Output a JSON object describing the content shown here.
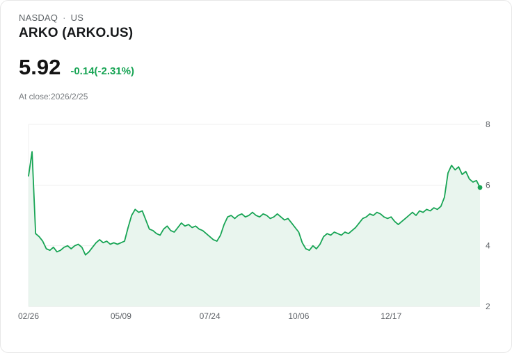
{
  "header": {
    "exchange": "NASDAQ",
    "separator": "·",
    "region": "US",
    "title": "ARKO (ARKO.US)"
  },
  "quote": {
    "price": "5.92",
    "change": "-0.14(-2.31%)",
    "change_color": "#17a454",
    "as_of": "At close:2026/2/25"
  },
  "chart_data": {
    "type": "area",
    "title": "ARKO.US one-year price history",
    "ylabel": "Price",
    "ylim": [
      2,
      8
    ],
    "yticks": [
      2,
      4,
      6,
      8
    ],
    "grid": true,
    "legend": "none",
    "xtick_labels": [
      "02/26",
      "05/09",
      "07/24",
      "10/06",
      "12/17"
    ],
    "xtick_indices": [
      0,
      26,
      51,
      76,
      102
    ],
    "last_value": 5.92,
    "colors": {
      "line": "#17a454",
      "fill": "#e9f5ee",
      "grid": "#efefef",
      "axis": "#e2e2e2",
      "tick_text": "#5f6368"
    },
    "values": [
      6.3,
      7.1,
      4.4,
      4.3,
      4.15,
      3.9,
      3.85,
      3.95,
      3.8,
      3.85,
      3.95,
      4.0,
      3.9,
      4.0,
      4.05,
      3.95,
      3.7,
      3.8,
      3.95,
      4.1,
      4.2,
      4.1,
      4.15,
      4.05,
      4.1,
      4.05,
      4.1,
      4.15,
      4.6,
      5.0,
      5.2,
      5.1,
      5.15,
      4.85,
      4.55,
      4.5,
      4.4,
      4.35,
      4.55,
      4.65,
      4.5,
      4.45,
      4.6,
      4.75,
      4.65,
      4.7,
      4.6,
      4.65,
      4.55,
      4.5,
      4.4,
      4.3,
      4.2,
      4.15,
      4.35,
      4.7,
      4.95,
      5.0,
      4.9,
      5.0,
      5.05,
      4.95,
      5.0,
      5.1,
      5.0,
      4.95,
      5.05,
      5.0,
      4.9,
      4.95,
      5.05,
      4.95,
      4.85,
      4.9,
      4.75,
      4.6,
      4.45,
      4.1,
      3.9,
      3.85,
      4.0,
      3.9,
      4.05,
      4.3,
      4.4,
      4.35,
      4.45,
      4.4,
      4.35,
      4.45,
      4.4,
      4.5,
      4.6,
      4.75,
      4.9,
      4.95,
      5.05,
      5.0,
      5.1,
      5.05,
      4.95,
      4.9,
      4.95,
      4.8,
      4.7,
      4.8,
      4.9,
      5.0,
      5.1,
      5.0,
      5.15,
      5.1,
      5.2,
      5.15,
      5.25,
      5.2,
      5.3,
      5.6,
      6.4,
      6.65,
      6.5,
      6.6,
      6.35,
      6.45,
      6.2,
      6.1,
      6.15,
      5.92
    ]
  }
}
